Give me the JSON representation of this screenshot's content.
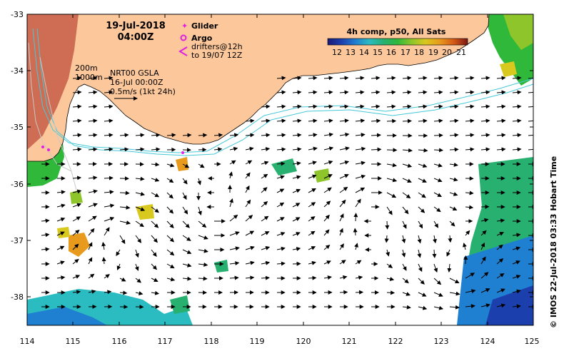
{
  "map": {
    "date": "19-Jul-2018",
    "time": "04:00Z",
    "legend": {
      "glider": "Glider",
      "argo": "Argo",
      "drifters_line1": "drifters@12h",
      "drifters_line2": "to 19/07 12Z"
    },
    "colorbar": {
      "title": "4h comp, p50, All Sats",
      "ticks": [
        "12",
        "13",
        "14",
        "15",
        "16",
        "17",
        "18",
        "19",
        "20",
        "21"
      ]
    },
    "isobaths": {
      "shallow": "200m",
      "deep": "1000m"
    },
    "altimetry": {
      "source": "NRT00 GSLA",
      "date": "16-Jul 00:00Z",
      "scale": "0.5m/s (1kt 24h)"
    },
    "credit": "© IMOS 22-Jul-2018 03:33 Hobart Time",
    "axes": {
      "lon_ticks": [
        "114",
        "115",
        "116",
        "117",
        "118",
        "119",
        "120",
        "121",
        "122",
        "123",
        "124",
        "125"
      ],
      "lat_ticks": [
        "-33",
        "-34",
        "-35",
        "-36",
        "-37",
        "-38"
      ]
    },
    "colors": {
      "land": "#fcc89b",
      "isobath": "#45c8d8",
      "shelf_line": "#c8c8c8",
      "glider": "#e020e0",
      "argo": "#e020e0",
      "drifter": "#e020e0",
      "colormap": [
        "#1a1a78",
        "#1c3fae",
        "#1f7fd0",
        "#2abcc0",
        "#27b070",
        "#2fb83a",
        "#8ec52a",
        "#d9c81e",
        "#e89a1c",
        "#d65a16",
        "#a8231a",
        "#7a1616"
      ]
    }
  }
}
